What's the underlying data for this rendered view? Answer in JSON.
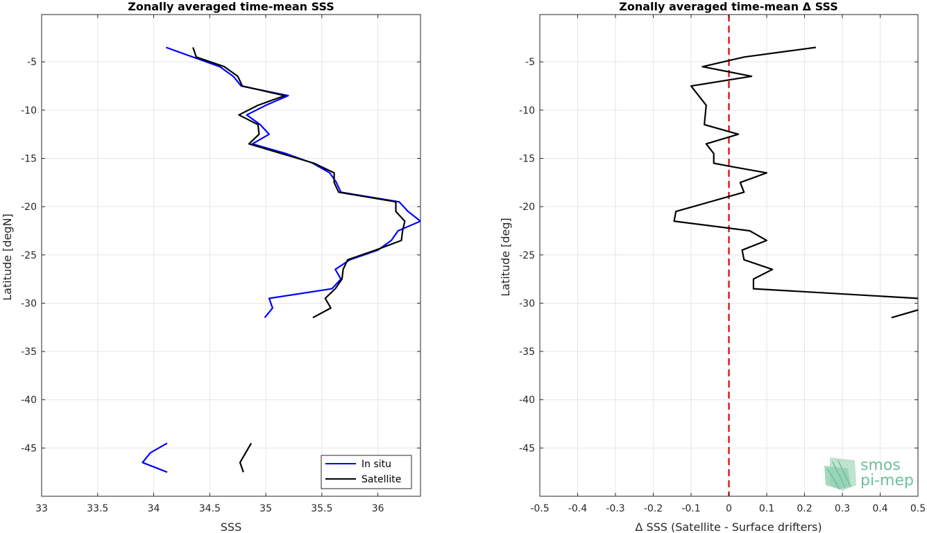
{
  "chart_data": [
    {
      "type": "line",
      "title": "Zonally averaged time-mean SSS",
      "xlabel": "SSS",
      "ylabel": "Latitude [degN]",
      "xlim": [
        33,
        36.38
      ],
      "ylim": [
        -50,
        -0.1
      ],
      "xticks": [
        33,
        33.5,
        34,
        34.5,
        35,
        35.5,
        36
      ],
      "xtick_labels": [
        "33",
        "33.5",
        "34",
        "34.5",
        "35",
        "35.5",
        "36"
      ],
      "yticks": [
        -5,
        -10,
        -15,
        -20,
        -25,
        -30,
        -35,
        -40,
        -45
      ],
      "ytick_labels": [
        "-5",
        "-10",
        "-15",
        "-20",
        "-25",
        "-30",
        "-35",
        "-40",
        "-45"
      ],
      "grid": true,
      "legend_position": "bottom-right",
      "series": [
        {
          "name": "In situ",
          "color": "#0000ff",
          "segments": [
            [
              [
                34.11,
                -3.5
              ],
              [
                34.59,
                -5.5
              ],
              [
                34.71,
                -6.5
              ],
              [
                34.78,
                -7.5
              ],
              [
                35.2,
                -8.5
              ],
              [
                35.0,
                -9.5
              ],
              [
                34.83,
                -10.5
              ],
              [
                34.95,
                -11.5
              ],
              [
                35.03,
                -12.5
              ],
              [
                34.88,
                -13.5
              ],
              [
                35.18,
                -14.5
              ],
              [
                35.42,
                -15.5
              ],
              [
                35.57,
                -16.5
              ],
              [
                35.63,
                -17.5
              ],
              [
                35.67,
                -18.5
              ],
              [
                36.19,
                -19.5
              ],
              [
                36.27,
                -20.5
              ],
              [
                36.38,
                -21.5
              ],
              [
                36.18,
                -22.5
              ],
              [
                36.12,
                -23.5
              ],
              [
                36.0,
                -24.5
              ],
              [
                35.75,
                -25.5
              ],
              [
                35.62,
                -26.5
              ],
              [
                35.67,
                -27.5
              ],
              [
                35.59,
                -28.5
              ],
              [
                35.03,
                -29.5
              ],
              [
                35.06,
                -30.5
              ],
              [
                34.99,
                -31.5
              ]
            ],
            [
              [
                34.12,
                -44.5
              ],
              [
                33.97,
                -45.5
              ],
              [
                33.9,
                -46.5
              ],
              [
                34.12,
                -47.5
              ]
            ]
          ]
        },
        {
          "name": "Satellite",
          "color": "#000000",
          "segments": [
            [
              [
                34.35,
                -3.5
              ],
              [
                34.38,
                -4.5
              ],
              [
                34.63,
                -5.5
              ],
              [
                34.75,
                -6.5
              ],
              [
                34.79,
                -7.5
              ],
              [
                35.17,
                -8.5
              ],
              [
                34.93,
                -9.5
              ],
              [
                34.76,
                -10.5
              ],
              [
                34.93,
                -11.5
              ],
              [
                34.94,
                -12.5
              ],
              [
                34.85,
                -13.5
              ],
              [
                35.43,
                -15.5
              ],
              [
                35.61,
                -16.5
              ],
              [
                35.61,
                -17.5
              ],
              [
                35.65,
                -18.5
              ],
              [
                36.16,
                -19.5
              ],
              [
                36.16,
                -20.5
              ],
              [
                36.24,
                -21.5
              ],
              [
                36.22,
                -22.5
              ],
              [
                36.21,
                -23.5
              ],
              [
                35.98,
                -24.5
              ],
              [
                35.73,
                -25.5
              ],
              [
                35.69,
                -26.5
              ],
              [
                35.68,
                -27.5
              ],
              [
                35.62,
                -28.5
              ],
              [
                35.53,
                -29.5
              ],
              [
                35.58,
                -30.5
              ],
              [
                35.42,
                -31.5
              ]
            ],
            [
              [
                34.87,
                -44.5
              ],
              [
                34.82,
                -45.5
              ],
              [
                34.77,
                -46.5
              ],
              [
                34.8,
                -47.5
              ]
            ]
          ]
        }
      ]
    },
    {
      "type": "line",
      "title": "Zonally averaged time-mean Δ SSS",
      "xlabel": "Δ SSS (Satellite - Surface drifters)",
      "ylabel": "Latitude [deg]",
      "xlim": [
        -0.5,
        0.5
      ],
      "ylim": [
        -50,
        -0.1
      ],
      "xticks": [
        -0.5,
        -0.4,
        -0.3,
        -0.2,
        -0.1,
        0,
        0.1,
        0.2,
        0.3,
        0.4,
        0.5
      ],
      "xtick_labels": [
        "-0.5",
        "-0.4",
        "-0.3",
        "-0.2",
        "-0.1",
        "0",
        "0.1",
        "0.2",
        "0.3",
        "0.4",
        "0.5"
      ],
      "yticks": [
        -5,
        -10,
        -15,
        -20,
        -25,
        -30,
        -35,
        -40,
        -45
      ],
      "ytick_labels": [
        "-5",
        "-10",
        "-15",
        "-20",
        "-25",
        "-30",
        "-35",
        "-40",
        "-45"
      ],
      "grid": true,
      "reference_line": {
        "x": 0,
        "color": "#e41a1c",
        "style": "dashed"
      },
      "series": [
        {
          "color": "#000000",
          "segments": [
            [
              [
                0.23,
                -3.5
              ],
              [
                0.04,
                -4.5
              ],
              [
                -0.07,
                -5.5
              ],
              [
                0.06,
                -6.5
              ],
              [
                -0.1,
                -7.5
              ],
              [
                -0.06,
                -9.5
              ],
              [
                -0.065,
                -11.5
              ],
              [
                0.025,
                -12.5
              ],
              [
                -0.06,
                -13.5
              ],
              [
                -0.04,
                -14.5
              ],
              [
                -0.04,
                -15.5
              ],
              [
                0.0,
                -15.8
              ],
              [
                0.1,
                -16.5
              ],
              [
                0.03,
                -17.5
              ],
              [
                0.04,
                -18.5
              ],
              [
                -0.14,
                -20.5
              ],
              [
                -0.145,
                -21.5
              ],
              [
                0.055,
                -22.5
              ],
              [
                0.1,
                -23.5
              ],
              [
                0.035,
                -24.5
              ],
              [
                0.04,
                -25.5
              ],
              [
                0.115,
                -26.5
              ],
              [
                0.065,
                -27.5
              ],
              [
                0.065,
                -28.5
              ],
              [
                0.5,
                -29.5
              ]
            ],
            [
              [
                0.5,
                -30.7
              ],
              [
                0.43,
                -31.5
              ]
            ]
          ]
        }
      ]
    }
  ],
  "logo": {
    "line1": "smos",
    "line2": "pi-mep"
  }
}
